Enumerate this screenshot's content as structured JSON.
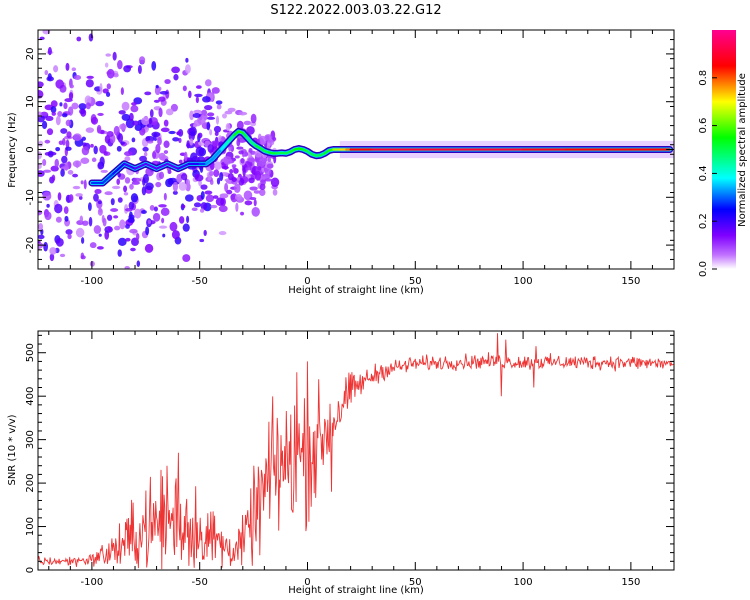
{
  "title": "S122.2022.003.03.22.G12",
  "chart_data": [
    {
      "type": "heatmap",
      "xlabel": "Height of straight line (km)",
      "ylabel": "Frequency (Hz)",
      "xlim": [
        -125,
        170
      ],
      "ylim": [
        -25,
        25
      ],
      "x_ticks": [
        -100,
        -50,
        0,
        50,
        100,
        150
      ],
      "y_ticks": [
        -20,
        -10,
        0,
        10,
        20
      ],
      "colorbar": {
        "label": "Normalized spectral amplitude",
        "range": [
          0,
          1
        ],
        "ticks": [
          0.0,
          0.2,
          0.4,
          0.6,
          0.8
        ],
        "colormap": [
          "#ffffff",
          "#a000ff",
          "#0000ff",
          "#00ffff",
          "#00ff00",
          "#ffff00",
          "#ff0000",
          "#ff00a0"
        ]
      },
      "ridge": [
        {
          "x": -100,
          "f": -7,
          "a": 0.25
        },
        {
          "x": -95,
          "f": -7,
          "a": 0.3
        },
        {
          "x": -90,
          "f": -5,
          "a": 0.25
        },
        {
          "x": -85,
          "f": -3,
          "a": 0.2
        },
        {
          "x": -80,
          "f": -4,
          "a": 0.2
        },
        {
          "x": -75,
          "f": -3,
          "a": 0.15
        },
        {
          "x": -70,
          "f": -4,
          "a": 0.2
        },
        {
          "x": -65,
          "f": -3,
          "a": 0.15
        },
        {
          "x": -60,
          "f": -4,
          "a": 0.2
        },
        {
          "x": -55,
          "f": -3,
          "a": 0.2
        },
        {
          "x": -50,
          "f": -3,
          "a": 0.25
        },
        {
          "x": -47,
          "f": -3,
          "a": 0.3
        },
        {
          "x": -44,
          "f": -2,
          "a": 0.35
        },
        {
          "x": -42,
          "f": -1,
          "a": 0.3
        },
        {
          "x": -40,
          "f": 0,
          "a": 0.35
        },
        {
          "x": -38,
          "f": 1,
          "a": 0.4
        },
        {
          "x": -36,
          "f": 2,
          "a": 0.45
        },
        {
          "x": -34,
          "f": 3,
          "a": 0.5
        },
        {
          "x": -32,
          "f": 3.8,
          "a": 0.6
        },
        {
          "x": -30,
          "f": 3.5,
          "a": 0.55
        },
        {
          "x": -28,
          "f": 2.5,
          "a": 0.5
        },
        {
          "x": -26,
          "f": 1.5,
          "a": 0.45
        },
        {
          "x": -24,
          "f": 0.8,
          "a": 0.5
        },
        {
          "x": -22,
          "f": 0.3,
          "a": 0.55
        },
        {
          "x": -20,
          "f": -0.3,
          "a": 0.5
        },
        {
          "x": -18,
          "f": -0.6,
          "a": 0.5
        },
        {
          "x": -16,
          "f": -0.8,
          "a": 0.55
        },
        {
          "x": -14,
          "f": -0.8,
          "a": 0.5
        },
        {
          "x": -12,
          "f": -0.7,
          "a": 0.5
        },
        {
          "x": -10,
          "f": -0.8,
          "a": 0.5
        },
        {
          "x": -8,
          "f": -0.5,
          "a": 0.5
        },
        {
          "x": -6,
          "f": 0,
          "a": 0.55
        },
        {
          "x": -4,
          "f": 0.2,
          "a": 0.55
        },
        {
          "x": -2,
          "f": 0,
          "a": 0.55
        },
        {
          "x": 0,
          "f": -0.4,
          "a": 0.5
        },
        {
          "x": 2,
          "f": -1,
          "a": 0.5
        },
        {
          "x": 4,
          "f": -1.3,
          "a": 0.5
        },
        {
          "x": 6,
          "f": -1.2,
          "a": 0.5
        },
        {
          "x": 8,
          "f": -0.8,
          "a": 0.5
        },
        {
          "x": 10,
          "f": -0.2,
          "a": 0.55
        },
        {
          "x": 12,
          "f": 0,
          "a": 0.6
        },
        {
          "x": 15,
          "f": 0,
          "a": 0.7
        },
        {
          "x": 18,
          "f": 0,
          "a": 0.75
        },
        {
          "x": 20,
          "f": 0,
          "a": 0.8
        },
        {
          "x": 30,
          "f": 0,
          "a": 0.9
        },
        {
          "x": 80,
          "f": 0,
          "a": 0.9
        },
        {
          "x": 100,
          "f": 0,
          "a": 0.9
        },
        {
          "x": 120,
          "f": 0,
          "a": 0.85
        },
        {
          "x": 150,
          "f": 0,
          "a": 0.85
        },
        {
          "x": 168,
          "f": 0,
          "a": 0.85
        }
      ]
    },
    {
      "type": "line",
      "xlabel": "Height of straight line (km)",
      "ylabel": "SNR (10 * v/v)",
      "xlim": [
        -125,
        170
      ],
      "ylim": [
        0,
        550
      ],
      "x_ticks": [
        -100,
        -50,
        0,
        50,
        100,
        150
      ],
      "y_ticks": [
        0,
        100,
        200,
        300,
        400,
        500
      ],
      "color": "#ee3333",
      "envelope": [
        {
          "x": -125,
          "mean": 20,
          "noise": 8
        },
        {
          "x": -110,
          "mean": 20,
          "noise": 8
        },
        {
          "x": -100,
          "mean": 25,
          "noise": 10
        },
        {
          "x": -92,
          "mean": 40,
          "noise": 25
        },
        {
          "x": -85,
          "mean": 60,
          "noise": 45
        },
        {
          "x": -75,
          "mean": 95,
          "noise": 70
        },
        {
          "x": -65,
          "mean": 110,
          "noise": 85
        },
        {
          "x": -60,
          "mean": 115,
          "noise": 90
        },
        {
          "x": -50,
          "mean": 90,
          "noise": 65
        },
        {
          "x": -40,
          "mean": 60,
          "noise": 40
        },
        {
          "x": -35,
          "mean": 45,
          "noise": 25
        },
        {
          "x": -30,
          "mean": 60,
          "noise": 40
        },
        {
          "x": -25,
          "mean": 120,
          "noise": 70
        },
        {
          "x": -20,
          "mean": 180,
          "noise": 100
        },
        {
          "x": -15,
          "mean": 230,
          "noise": 110
        },
        {
          "x": -10,
          "mean": 240,
          "noise": 110
        },
        {
          "x": -5,
          "mean": 260,
          "noise": 110
        },
        {
          "x": 0,
          "mean": 270,
          "noise": 110
        },
        {
          "x": 5,
          "mean": 290,
          "noise": 90
        },
        {
          "x": 10,
          "mean": 330,
          "noise": 70
        },
        {
          "x": 15,
          "mean": 370,
          "noise": 45
        },
        {
          "x": 20,
          "mean": 410,
          "noise": 30
        },
        {
          "x": 25,
          "mean": 430,
          "noise": 20
        },
        {
          "x": 35,
          "mean": 460,
          "noise": 15
        },
        {
          "x": 50,
          "mean": 475,
          "noise": 12
        },
        {
          "x": 80,
          "mean": 480,
          "noise": 12
        },
        {
          "x": 100,
          "mean": 478,
          "noise": 12
        },
        {
          "x": 140,
          "mean": 478,
          "noise": 12
        },
        {
          "x": 170,
          "mean": 475,
          "noise": 12
        }
      ],
      "spikes": [
        {
          "x": 88,
          "y": 545
        },
        {
          "x": 90,
          "y": 400
        },
        {
          "x": 92,
          "y": 530
        },
        {
          "x": 105,
          "y": 420
        },
        {
          "x": 106,
          "y": 515
        },
        {
          "x": 11,
          "y": 180
        },
        {
          "x": 0,
          "y": 480
        },
        {
          "x": -5,
          "y": 455
        },
        {
          "x": -14,
          "y": 350
        },
        {
          "x": -60,
          "y": 270
        },
        {
          "x": -65,
          "y": 240
        }
      ]
    }
  ]
}
